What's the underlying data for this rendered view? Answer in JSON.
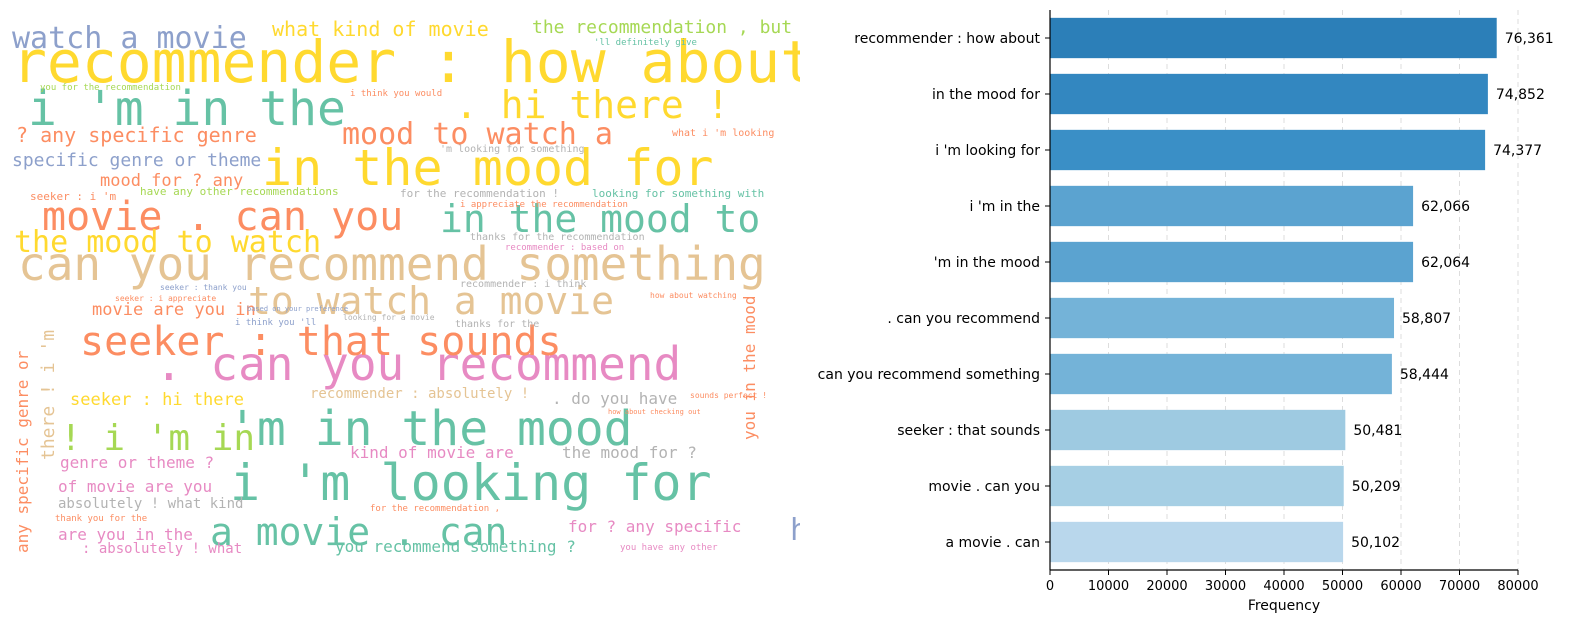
{
  "chart_data": [
    {
      "type": "wordcloud",
      "colors": [
        "#66c2a5",
        "#fc8d62",
        "#8da0cb",
        "#e78ac3",
        "#a6d854",
        "#ffd92f",
        "#e5c494",
        "#b3b3b3"
      ],
      "words": [
        {
          "text": "recommender : how about",
          "color": "#ffd92f",
          "size": 58
        },
        {
          "text": "in the mood for",
          "color": "#ffd92f",
          "size": 50
        },
        {
          "text": "i 'm looking for",
          "color": "#66c2a5",
          "size": 50
        },
        {
          "text": "i 'm in the",
          "color": "#66c2a5",
          "size": 48
        },
        {
          "text": "'m in the mood",
          "color": "#66c2a5",
          "size": 48
        },
        {
          "text": ". can you recommend",
          "color": "#e78ac3",
          "size": 46
        },
        {
          "text": "can you recommend something",
          "color": "#e5c494",
          "size": 46
        },
        {
          "text": "seeker : that sounds",
          "color": "#fc8d62",
          "size": 40
        },
        {
          "text": "movie . can you",
          "color": "#fc8d62",
          "size": 40
        },
        {
          "text": "a movie . can",
          "color": "#66c2a5",
          "size": 38
        },
        {
          "text": ". hi there !",
          "color": "#ffd92f",
          "size": 38
        },
        {
          "text": "in the mood to",
          "color": "#66c2a5",
          "size": 38
        },
        {
          "text": "to watch a movie",
          "color": "#e5c494",
          "size": 38
        },
        {
          "text": "! i 'm in",
          "color": "#a6d854",
          "size": 36
        },
        {
          "text": "the mood to watch",
          "color": "#ffd92f",
          "size": 30
        },
        {
          "text": "watch a movie",
          "color": "#8da0cb",
          "size": 30
        },
        {
          "text": "mood to watch a",
          "color": "#fc8d62",
          "size": 30
        },
        {
          "text": "hi there ! i",
          "color": "#8da0cb",
          "size": 30
        },
        {
          "text": "what kind of movie",
          "color": "#ffd92f",
          "size": 20
        },
        {
          "text": "the recommendation , but",
          "color": "#a6d854",
          "size": 18
        },
        {
          "text": "? any specific genre",
          "color": "#fc8d62",
          "size": 20
        },
        {
          "text": "specific genre or theme",
          "color": "#8da0cb",
          "size": 18
        },
        {
          "text": "mood for ? any",
          "color": "#fc8d62",
          "size": 17
        },
        {
          "text": "movie are you in",
          "color": "#fc8d62",
          "size": 17
        },
        {
          "text": "seeker : hi there",
          "color": "#ffd92f",
          "size": 17
        },
        {
          "text": "genre or theme ?",
          "color": "#e78ac3",
          "size": 16
        },
        {
          "text": "of movie are you",
          "color": "#e78ac3",
          "size": 16
        },
        {
          "text": "absolutely ! what kind",
          "color": "#b3b3b3",
          "size": 14
        },
        {
          "text": "are you in the",
          "color": "#e78ac3",
          "size": 16
        },
        {
          "text": ". do you have",
          "color": "#b3b3b3",
          "size": 16
        },
        {
          "text": "kind of movie are",
          "color": "#e78ac3",
          "size": 16
        },
        {
          "text": "the mood for ?",
          "color": "#b3b3b3",
          "size": 16
        },
        {
          "text": "you recommend something ?",
          "color": "#66c2a5",
          "size": 16
        },
        {
          "text": "for ? any specific",
          "color": "#e78ac3",
          "size": 16
        },
        {
          "text": ": absolutely ! what",
          "color": "#e78ac3",
          "size": 14
        },
        {
          "text": "recommender : absolutely !",
          "color": "#e5c494",
          "size": 14
        },
        {
          "text": "any specific genre or",
          "color": "#fc8d62",
          "size": 16,
          "rotate": -90
        },
        {
          "text": "there ! i 'm",
          "color": "#e5c494",
          "size": 18,
          "rotate": -90
        },
        {
          "text": "you in the mood",
          "color": "#fc8d62",
          "size": 16,
          "rotate": -90
        },
        {
          "text": "have any other recommendations",
          "color": "#a6d854",
          "size": 11
        },
        {
          "text": "for the recommendation !",
          "color": "#b3b3b3",
          "size": 11
        },
        {
          "text": "looking for something with",
          "color": "#66c2a5",
          "size": 11
        },
        {
          "text": "thanks for the recommendation",
          "color": "#b3b3b3",
          "size": 10
        },
        {
          "text": "i appreciate the recommendation",
          "color": "#fc8d62",
          "size": 9
        },
        {
          "text": "'m looking for something",
          "color": "#b3b3b3",
          "size": 10
        },
        {
          "text": "what i 'm looking",
          "color": "#fc8d62",
          "size": 10
        },
        {
          "text": "recommender : based on",
          "color": "#e78ac3",
          "size": 9
        },
        {
          "text": "recommender : i think",
          "color": "#b3b3b3",
          "size": 10
        },
        {
          "text": "seeker : i 'm",
          "color": "#fc8d62",
          "size": 11
        },
        {
          "text": "i think you 'll",
          "color": "#8da0cb",
          "size": 9
        },
        {
          "text": "thanks for the",
          "color": "#b3b3b3",
          "size": 10
        },
        {
          "text": "for the recommendation ,",
          "color": "#fc8d62",
          "size": 9
        },
        {
          "text": "thank you for the",
          "color": "#fc8d62",
          "size": 9
        },
        {
          "text": "you have any other",
          "color": "#e78ac3",
          "size": 9
        },
        {
          "text": "you for the recommendation",
          "color": "#a6d854",
          "size": 9
        },
        {
          "text": "i think you would",
          "color": "#fc8d62",
          "size": 9
        },
        {
          "text": "how about watching",
          "color": "#fc8d62",
          "size": 8
        },
        {
          "text": "'ll definitely give",
          "color": "#66c2a5",
          "size": 9
        },
        {
          "text": "seeker : thank you",
          "color": "#8da0cb",
          "size": 8
        },
        {
          "text": "seeker : i appreciate",
          "color": "#fc8d62",
          "size": 8
        },
        {
          "text": "looking for a movie",
          "color": "#b3b3b3",
          "size": 8
        },
        {
          "text": "based on your preference",
          "color": "#8da0cb",
          "size": 7
        },
        {
          "text": "how about checking out",
          "color": "#fc8d62",
          "size": 7
        },
        {
          "text": "sounds perfect !",
          "color": "#fc8d62",
          "size": 8
        }
      ]
    },
    {
      "type": "bar",
      "orientation": "horizontal",
      "categories": [
        "recommender : how about",
        "in the mood for",
        "i 'm looking for",
        "i 'm in the",
        "'m in the mood",
        ". can you recommend",
        "can you recommend something",
        "seeker : that sounds",
        "movie . can you",
        "a movie . can"
      ],
      "values": [
        76361,
        74852,
        74377,
        62066,
        62064,
        58807,
        58444,
        50481,
        50209,
        50102
      ],
      "value_labels": [
        "76,361",
        "74,852",
        "74,377",
        "62,066",
        "62,064",
        "58,807",
        "58,444",
        "50,481",
        "50,209",
        "50,102"
      ],
      "colors": [
        "#2c7fb8",
        "#3387c0",
        "#3a8fc6",
        "#5ba3d0",
        "#5ba3d0",
        "#74b3d8",
        "#74b3d8",
        "#9ecae1",
        "#a6cfe4",
        "#b9d7ec"
      ],
      "xlabel": "Frequency",
      "ylabel": "",
      "xlim": [
        0,
        80000
      ],
      "xticks": [
        0,
        10000,
        20000,
        30000,
        40000,
        50000,
        60000,
        70000,
        80000
      ],
      "xtick_labels": [
        "0",
        "10000",
        "20000",
        "30000",
        "40000",
        "50000",
        "60000",
        "70000",
        "80000"
      ],
      "grid": "vertical-dashed"
    }
  ]
}
